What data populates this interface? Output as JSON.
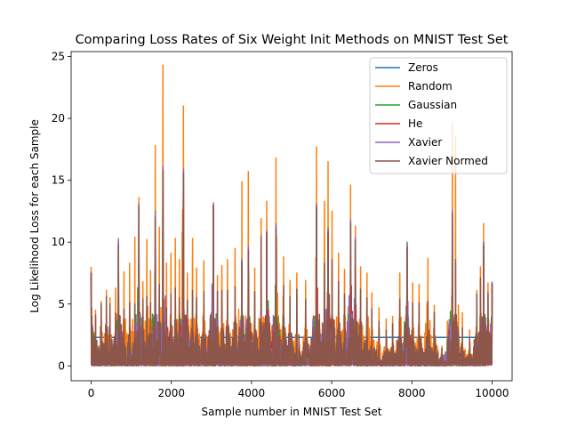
{
  "chart_data": {
    "type": "line",
    "title": "Comparing Loss Rates of Six Weight Init Methods on MNIST Test Set",
    "xlabel": "Sample number in MNIST Test Set",
    "ylabel": "Log Likelihood Loss for each Sample",
    "xlim": [
      -500,
      10500
    ],
    "ylim": [
      -1.2,
      25.4
    ],
    "xticks": [
      0,
      2000,
      4000,
      6000,
      8000,
      10000
    ],
    "yticks": [
      0,
      5,
      10,
      15,
      20,
      25
    ],
    "grid": false,
    "legend_position": "top-right",
    "n_samples": 10000,
    "series": [
      {
        "name": "Zeros",
        "color": "#1f77b4",
        "spikes": [
          [
            0,
            2.3
          ],
          [
            10000,
            2.3
          ]
        ]
      },
      {
        "name": "Random",
        "color": "#ff7f0e",
        "spikes": [
          [
            0,
            8.0
          ],
          [
            110,
            4.5
          ],
          [
            250,
            5.2
          ],
          [
            380,
            6.1
          ],
          [
            470,
            5.5
          ],
          [
            610,
            6.3
          ],
          [
            680,
            10.3
          ],
          [
            820,
            7.6
          ],
          [
            960,
            8.3
          ],
          [
            1090,
            10.4
          ],
          [
            1190,
            13.6
          ],
          [
            1290,
            6.8
          ],
          [
            1390,
            10.2
          ],
          [
            1480,
            7.7
          ],
          [
            1600,
            17.8
          ],
          [
            1700,
            11.2
          ],
          [
            1790,
            24.3
          ],
          [
            1880,
            8.3
          ],
          [
            1990,
            9.1
          ],
          [
            2100,
            10.3
          ],
          [
            2200,
            8.6
          ],
          [
            2300,
            21.0
          ],
          [
            2400,
            7.5
          ],
          [
            2530,
            10.3
          ],
          [
            2630,
            7.9
          ],
          [
            2810,
            8.5
          ],
          [
            3050,
            13.2
          ],
          [
            3150,
            7.3
          ],
          [
            3260,
            8.1
          ],
          [
            3400,
            8.6
          ],
          [
            3590,
            9.5
          ],
          [
            3760,
            14.9
          ],
          [
            3920,
            15.7
          ],
          [
            4080,
            7.9
          ],
          [
            4240,
            11.9
          ],
          [
            4380,
            13.3
          ],
          [
            4610,
            16.8
          ],
          [
            4800,
            8.8
          ],
          [
            4960,
            6.9
          ],
          [
            5130,
            7.5
          ],
          [
            5350,
            6.9
          ],
          [
            5620,
            17.7
          ],
          [
            5820,
            13.3
          ],
          [
            5910,
            16.5
          ],
          [
            6010,
            12.5
          ],
          [
            6170,
            9.1
          ],
          [
            6320,
            7.8
          ],
          [
            6470,
            14.6
          ],
          [
            6590,
            11.3
          ],
          [
            6720,
            8.0
          ],
          [
            6880,
            7.5
          ],
          [
            7000,
            5.9
          ],
          [
            7180,
            4.7
          ],
          [
            7360,
            3.8
          ],
          [
            7520,
            4.0
          ],
          [
            7700,
            7.5
          ],
          [
            7880,
            9.6
          ],
          [
            8020,
            6.7
          ],
          [
            8180,
            6.6
          ],
          [
            8400,
            8.7
          ],
          [
            8560,
            4.9
          ],
          [
            8750,
            1.6
          ],
          [
            9010,
            19.6
          ],
          [
            9090,
            18.5
          ],
          [
            9260,
            4.3
          ],
          [
            9440,
            2.9
          ],
          [
            9620,
            6.1
          ],
          [
            9710,
            8.0
          ],
          [
            9790,
            11.5
          ],
          [
            9900,
            6.7
          ],
          [
            10000,
            6.5
          ]
        ]
      },
      {
        "name": "Gaussian",
        "color": "#2ca02c",
        "spikes": [
          [
            0,
            7.6
          ],
          [
            680,
            10.1
          ],
          [
            1190,
            13.0
          ],
          [
            1600,
            12.5
          ],
          [
            1790,
            16.0
          ],
          [
            2300,
            15.8
          ],
          [
            3050,
            13.0
          ],
          [
            3760,
            8.6
          ],
          [
            3920,
            9.6
          ],
          [
            4380,
            10.9
          ],
          [
            4610,
            11.5
          ],
          [
            5620,
            13.0
          ],
          [
            5910,
            11.1
          ],
          [
            6470,
            11.8
          ],
          [
            6590,
            10.4
          ],
          [
            7880,
            10.0
          ],
          [
            9010,
            12.5
          ],
          [
            9790,
            10.0
          ],
          [
            10000,
            6.8
          ]
        ]
      },
      {
        "name": "He",
        "color": "#d62728",
        "spikes": [
          [
            0,
            7.5
          ],
          [
            680,
            10.0
          ],
          [
            1190,
            13.0
          ],
          [
            1600,
            12.2
          ],
          [
            1790,
            16.0
          ],
          [
            2300,
            15.8
          ],
          [
            3050,
            13.0
          ],
          [
            3760,
            8.5
          ],
          [
            3920,
            9.5
          ],
          [
            4380,
            10.8
          ],
          [
            4610,
            11.3
          ],
          [
            5620,
            13.0
          ],
          [
            5910,
            11.0
          ],
          [
            6470,
            11.7
          ],
          [
            6590,
            10.3
          ],
          [
            7880,
            9.8
          ],
          [
            9010,
            12.5
          ],
          [
            9790,
            9.9
          ],
          [
            10000,
            6.7
          ]
        ]
      },
      {
        "name": "Xavier",
        "color": "#9467bd",
        "spikes": [
          [
            0,
            7.6
          ],
          [
            680,
            10.2
          ],
          [
            1190,
            13.1
          ],
          [
            1600,
            12.3
          ],
          [
            1790,
            16.1
          ],
          [
            2300,
            15.9
          ],
          [
            3050,
            13.1
          ],
          [
            3760,
            8.6
          ],
          [
            3920,
            9.6
          ],
          [
            4380,
            10.9
          ],
          [
            4610,
            11.4
          ],
          [
            5620,
            13.1
          ],
          [
            5910,
            11.0
          ],
          [
            6470,
            11.8
          ],
          [
            6590,
            10.4
          ],
          [
            7880,
            9.9
          ],
          [
            9010,
            12.6
          ],
          [
            9790,
            10.0
          ],
          [
            10000,
            6.8
          ]
        ]
      },
      {
        "name": "Xavier Normed",
        "color": "#8c564b",
        "spikes": [
          [
            0,
            7.5
          ],
          [
            110,
            4.1
          ],
          [
            250,
            5.0
          ],
          [
            380,
            5.6
          ],
          [
            470,
            5.0
          ],
          [
            610,
            4.3
          ],
          [
            680,
            9.8
          ],
          [
            820,
            4.6
          ],
          [
            960,
            5.1
          ],
          [
            1090,
            5.0
          ],
          [
            1190,
            12.9
          ],
          [
            1290,
            5.4
          ],
          [
            1390,
            5.6
          ],
          [
            1480,
            5.1
          ],
          [
            1600,
            12.0
          ],
          [
            1700,
            6.6
          ],
          [
            1790,
            15.8
          ],
          [
            1880,
            4.7
          ],
          [
            1990,
            5.8
          ],
          [
            2100,
            6.3
          ],
          [
            2200,
            5.5
          ],
          [
            2300,
            15.6
          ],
          [
            2400,
            5.3
          ],
          [
            2530,
            6.1
          ],
          [
            2630,
            5.5
          ],
          [
            2810,
            6.0
          ],
          [
            3050,
            12.9
          ],
          [
            3150,
            6.0
          ],
          [
            3260,
            6.1
          ],
          [
            3400,
            6.1
          ],
          [
            3590,
            6.4
          ],
          [
            3760,
            8.4
          ],
          [
            3920,
            9.3
          ],
          [
            4080,
            6.0
          ],
          [
            4240,
            10.5
          ],
          [
            4380,
            10.7
          ],
          [
            4610,
            11.1
          ],
          [
            4800,
            6.5
          ],
          [
            4960,
            5.6
          ],
          [
            5130,
            6.2
          ],
          [
            5350,
            5.4
          ],
          [
            5620,
            12.8
          ],
          [
            5820,
            8.3
          ],
          [
            5910,
            10.8
          ],
          [
            6010,
            8.6
          ],
          [
            6170,
            6.8
          ],
          [
            6320,
            5.8
          ],
          [
            6470,
            11.5
          ],
          [
            6590,
            10.1
          ],
          [
            6720,
            6.2
          ],
          [
            6880,
            5.5
          ],
          [
            7000,
            4.6
          ],
          [
            7180,
            3.6
          ],
          [
            7360,
            2.9
          ],
          [
            7520,
            3.4
          ],
          [
            7700,
            5.4
          ],
          [
            7880,
            9.6
          ],
          [
            8020,
            5.1
          ],
          [
            8180,
            5.1
          ],
          [
            8400,
            5.2
          ],
          [
            8560,
            4.3
          ],
          [
            8750,
            1.4
          ],
          [
            9010,
            12.3
          ],
          [
            9090,
            8.6
          ],
          [
            9260,
            3.1
          ],
          [
            9440,
            2.3
          ],
          [
            9620,
            5.8
          ],
          [
            9710,
            7.1
          ],
          [
            9790,
            9.7
          ],
          [
            9900,
            5.9
          ],
          [
            10000,
            6.6
          ]
        ]
      }
    ]
  }
}
